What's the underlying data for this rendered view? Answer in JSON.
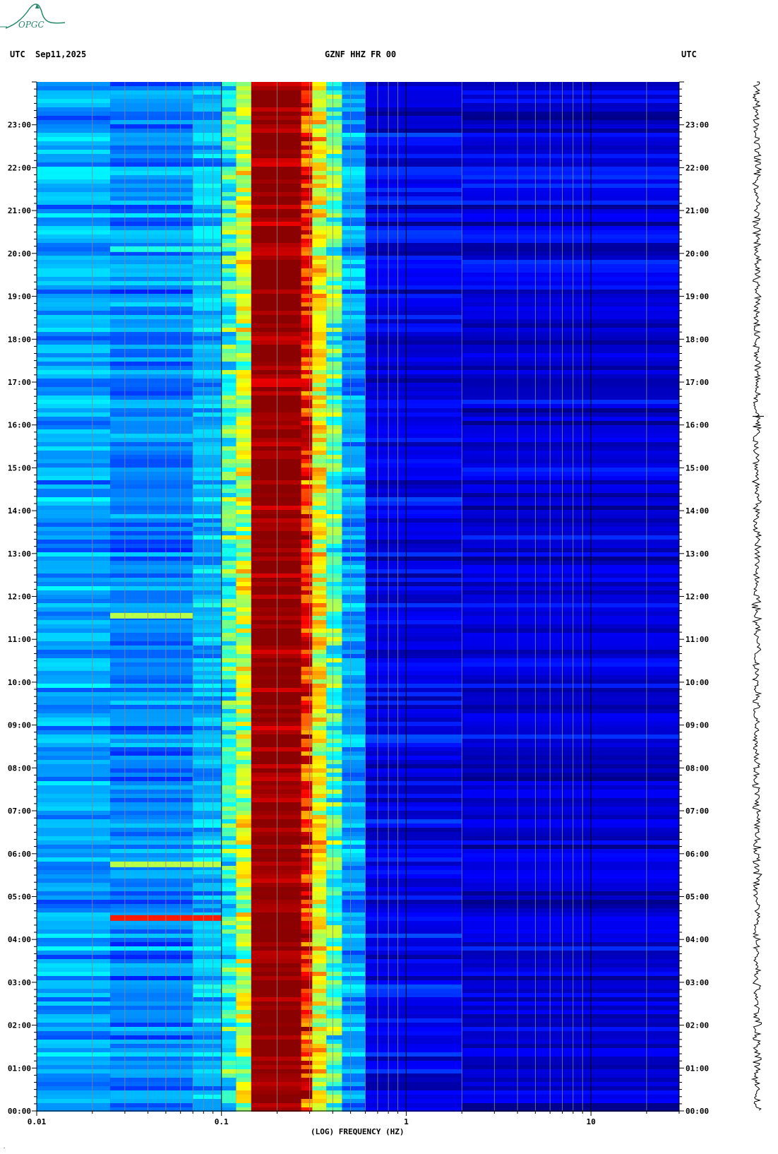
{
  "header": {
    "timezone_left": "UTC",
    "date": "Sep11,2025",
    "station_title": "GZNF HHZ FR 00",
    "timezone_right": "UTC"
  },
  "logo": {
    "text": "OPGC",
    "color": "#2a8a6a"
  },
  "chart_data": {
    "type": "heatmap",
    "title": "GZNF HHZ FR 00",
    "xlabel": "(LOG) FREQUENCY (HZ)",
    "x_scale": "log",
    "xlim": [
      0.01,
      30
    ],
    "x_ticks": [
      {
        "value": 0.01,
        "label": "0.01"
      },
      {
        "value": 0.1,
        "label": "0.1"
      },
      {
        "value": 1,
        "label": "1"
      },
      {
        "value": 10,
        "label": "10"
      }
    ],
    "y_ticks": [
      "00:00",
      "01:00",
      "02:00",
      "03:00",
      "04:00",
      "05:00",
      "06:00",
      "07:00",
      "08:00",
      "09:00",
      "10:00",
      "11:00",
      "12:00",
      "13:00",
      "14:00",
      "15:00",
      "16:00",
      "17:00",
      "18:00",
      "19:00",
      "20:00",
      "21:00",
      "22:00",
      "23:00"
    ],
    "ylim_hours": [
      0,
      24
    ],
    "colormap": [
      "#00008b",
      "#0000ff",
      "#0088ff",
      "#00ffff",
      "#88ff77",
      "#ffff00",
      "#ff8800",
      "#ff0000",
      "#8b0000"
    ],
    "bands": [
      {
        "f_min": 0.01,
        "f_max": 0.025,
        "level": 0.28
      },
      {
        "f_min": 0.025,
        "f_max": 0.07,
        "level": 0.25
      },
      {
        "f_min": 0.07,
        "f_max": 0.1,
        "level": 0.3
      },
      {
        "f_min": 0.1,
        "f_max": 0.12,
        "level": 0.42
      },
      {
        "f_min": 0.12,
        "f_max": 0.145,
        "level": 0.55
      },
      {
        "f_min": 0.145,
        "f_max": 0.27,
        "level": 1.0
      },
      {
        "f_min": 0.27,
        "f_max": 0.31,
        "level": 0.85
      },
      {
        "f_min": 0.31,
        "f_max": 0.37,
        "level": 0.62
      },
      {
        "f_min": 0.37,
        "f_max": 0.45,
        "level": 0.45
      },
      {
        "f_min": 0.45,
        "f_max": 0.6,
        "level": 0.28
      },
      {
        "f_min": 0.6,
        "f_max": 2,
        "level": 0.1
      },
      {
        "f_min": 2,
        "f_max": 30,
        "level": 0.08
      }
    ],
    "events": [
      {
        "hour": 4.5,
        "f_min": 0.025,
        "f_max": 0.1,
        "level": 0.85
      },
      {
        "hour": 5.75,
        "f_min": 0.025,
        "f_max": 0.1,
        "level": 0.55
      },
      {
        "hour": 11.55,
        "f_min": 0.025,
        "f_max": 0.07,
        "level": 0.55
      },
      {
        "hour": 20.1,
        "f_min": 0.025,
        "f_max": 0.1,
        "level": 0.4
      }
    ],
    "trace_spike_hour": 16.2
  },
  "footer": {
    "mark": "·"
  }
}
